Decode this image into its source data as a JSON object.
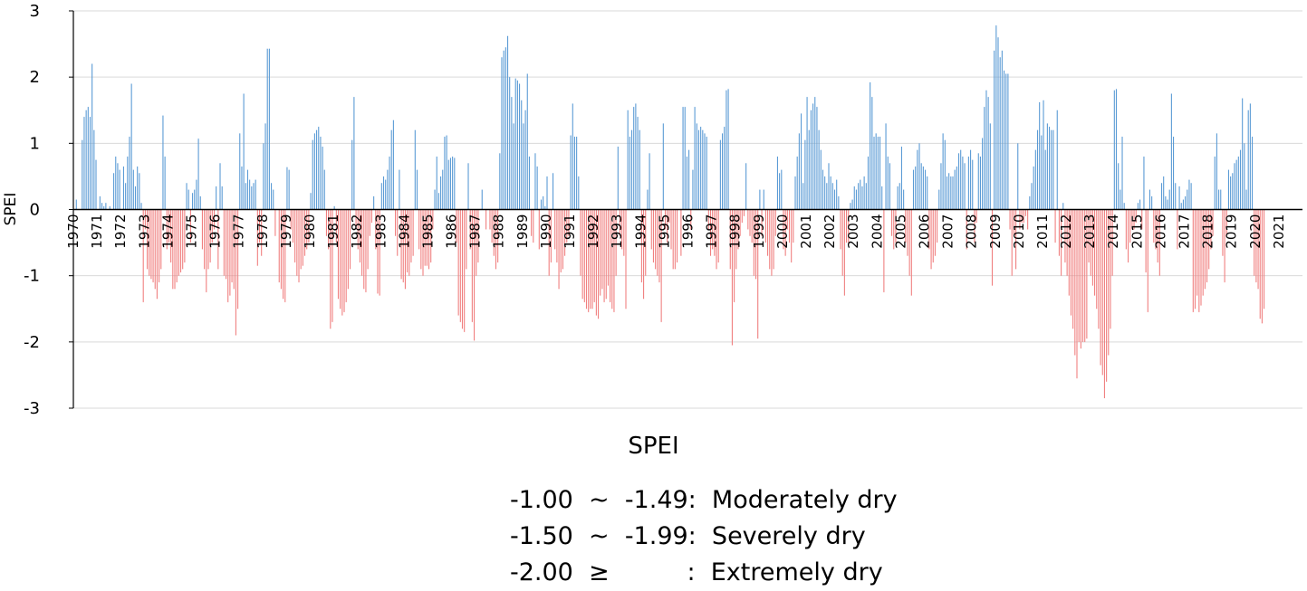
{
  "chart_data": {
    "type": "bar",
    "ylabel": "SPEI",
    "xlabel": "",
    "ylim": [
      -3,
      3
    ],
    "yticks": [
      "3",
      "2",
      "1",
      "0",
      "-1",
      "-2",
      "-3"
    ],
    "ytick_values": [
      3,
      2,
      1,
      0,
      -1,
      -2,
      -3
    ],
    "grid": "horizontal",
    "colors": {
      "positive": "#5b9bd5",
      "negative": "#f08080",
      "axis": "#000000",
      "grid": "#d9d9d9"
    },
    "year_labels": [
      "1970",
      "1971",
      "1972",
      "1973",
      "1974",
      "1975",
      "1976",
      "1977",
      "1978",
      "1979",
      "1980",
      "1981",
      "1982",
      "1983",
      "1984",
      "1985",
      "1986",
      "1987",
      "1988",
      "1989",
      "1990",
      "1991",
      "1992",
      "1993",
      "1994",
      "1995",
      "1996",
      "1997",
      "1998",
      "1999",
      "2000",
      "2001",
      "2002",
      "2003",
      "2004",
      "2005",
      "2006",
      "2007",
      "2008",
      "2009",
      "2010",
      "2011",
      "2012",
      "2013",
      "2014",
      "2015",
      "2016",
      "2017",
      "2018",
      "2019",
      "2020",
      "2021"
    ],
    "start_year": 1970,
    "series": [
      {
        "values": [
          0.0,
          0.15,
          0.0,
          0.0,
          1.05,
          1.4,
          1.5,
          1.55,
          1.4,
          2.2,
          1.2,
          0.75,
          0.0,
          0.2,
          0.1,
          0.05,
          0.1,
          0.0,
          0.05,
          0.0,
          0.55,
          0.8,
          0.7,
          0.6,
          0.0,
          0.65,
          0.4,
          0.8,
          1.1,
          1.9,
          0.6,
          0.35,
          0.65,
          0.55,
          0.1,
          -1.4,
          -0.3,
          -0.9,
          -1.0,
          -1.05,
          -1.1,
          -1.2,
          -1.35,
          -1.1,
          -0.9,
          1.42,
          0.8,
          -0.6,
          -0.5,
          -0.8,
          -1.2,
          -1.2,
          -1.1,
          -1.0,
          -0.95,
          -0.9,
          -0.8,
          0.4,
          0.3,
          -0.5,
          0.25,
          0.3,
          0.45,
          1.07,
          0.2,
          -0.6,
          -0.9,
          -1.25,
          -0.9,
          -0.8,
          -0.5,
          -0.3,
          0.35,
          -0.9,
          0.7,
          0.35,
          -1.0,
          -1.05,
          -1.4,
          -1.3,
          -1.1,
          -1.2,
          -1.9,
          -1.5,
          1.15,
          0.65,
          1.75,
          0.4,
          0.6,
          0.45,
          0.35,
          0.4,
          0.45,
          -0.85,
          -0.5,
          -0.7,
          1.0,
          1.3,
          2.43,
          2.43,
          0.4,
          0.3,
          -0.4,
          0.0,
          -1.1,
          -1.2,
          -1.35,
          -1.4,
          0.64,
          0.6,
          -0.3,
          -0.5,
          -0.8,
          -1.0,
          -1.1,
          -0.9,
          -0.85,
          -0.7,
          -0.6,
          -0.5,
          0.25,
          1.05,
          1.15,
          1.2,
          1.25,
          1.1,
          0.95,
          0.6,
          -0.4,
          -0.6,
          -1.8,
          -1.7,
          0.05,
          -0.5,
          -1.35,
          -1.5,
          -1.6,
          -1.55,
          -1.4,
          -1.2,
          -0.9,
          1.05,
          1.7,
          -0.3,
          -0.6,
          -0.8,
          -1.0,
          -1.2,
          -1.25,
          -0.9,
          -0.4,
          -0.2,
          0.2,
          -0.6,
          -1.27,
          -1.3,
          0.4,
          0.5,
          0.45,
          0.6,
          0.8,
          1.2,
          1.35,
          -0.4,
          -0.7,
          0.6,
          -1.05,
          -1.1,
          -1.2,
          -0.95,
          -1.0,
          -0.8,
          -0.7,
          1.2,
          0.6,
          -0.6,
          -0.9,
          -1.0,
          -0.85,
          -0.85,
          -0.9,
          -0.8,
          -0.3,
          0.3,
          0.8,
          0.25,
          0.5,
          0.6,
          1.1,
          1.12,
          0.75,
          0.78,
          0.8,
          0.78,
          -0.5,
          -1.6,
          -1.7,
          -1.8,
          -1.85,
          -0.9,
          0.7,
          -0.6,
          -1.7,
          -1.98,
          -1.0,
          -0.8,
          0.0,
          0.3,
          0.0,
          -0.3,
          0.0,
          -0.3,
          -0.5,
          -0.7,
          -0.9,
          -0.8,
          0.85,
          2.3,
          2.4,
          2.45,
          2.62,
          2.0,
          1.7,
          1.3,
          1.98,
          1.95,
          1.9,
          1.65,
          1.3,
          1.5,
          2.05,
          0.8,
          -0.4,
          -0.5,
          0.85,
          0.65,
          -0.6,
          0.15,
          0.2,
          0.05,
          0.5,
          -1.0,
          -0.8,
          0.55,
          -0.6,
          -0.8,
          -1.2,
          -0.95,
          -0.9,
          -0.7,
          -0.5,
          -0.4,
          1.12,
          1.6,
          1.1,
          1.1,
          0.5,
          -1.0,
          -1.35,
          -1.4,
          -1.5,
          -1.55,
          -1.5,
          -1.5,
          -1.4,
          -1.6,
          -1.65,
          -1.3,
          -1.2,
          -1.4,
          -1.35,
          -1.15,
          -1.4,
          -1.5,
          -1.55,
          -1.0,
          0.95,
          -0.4,
          -0.6,
          -0.7,
          -1.5,
          1.5,
          1.1,
          1.2,
          1.55,
          1.6,
          1.4,
          1.2,
          -1.1,
          -1.35,
          -1.0,
          0.3,
          0.85,
          -0.6,
          -0.8,
          -0.9,
          -1.0,
          -1.1,
          -1.7,
          1.3,
          -0.3,
          -0.5,
          -0.2,
          -0.6,
          -0.9,
          -0.9,
          -0.8,
          0.0,
          -0.7,
          1.55,
          1.55,
          0.8,
          0.9,
          -0.3,
          0.6,
          1.55,
          1.3,
          1.2,
          1.25,
          1.2,
          1.15,
          1.1,
          -0.3,
          -0.7,
          -0.6,
          -0.7,
          -0.9,
          -0.8,
          1.05,
          1.15,
          1.25,
          1.8,
          1.82,
          -0.9,
          -2.05,
          -1.4,
          -0.9,
          -0.6,
          -0.4,
          -0.2,
          -0.1,
          0.7,
          -0.3,
          -0.4,
          -0.5,
          -1.0,
          -1.05,
          -1.95,
          0.3,
          -0.4,
          0.3,
          -0.5,
          -0.7,
          -0.9,
          -1.0,
          -0.9,
          -0.4,
          0.8,
          0.55,
          0.6,
          -0.6,
          -0.7,
          -0.3,
          -0.5,
          -0.8,
          -0.5,
          0.5,
          0.8,
          1.15,
          1.45,
          0.4,
          1.05,
          1.7,
          1.2,
          1.5,
          1.6,
          1.7,
          1.55,
          1.2,
          0.9,
          0.6,
          0.5,
          0.4,
          0.7,
          0.5,
          0.4,
          0.3,
          0.45,
          0.2,
          -0.6,
          -1.0,
          -1.3,
          -0.5,
          -0.5,
          0.1,
          0.15,
          0.35,
          0.3,
          0.4,
          0.45,
          0.35,
          0.5,
          0.4,
          0.8,
          1.92,
          1.7,
          1.1,
          1.15,
          1.1,
          1.1,
          0.35,
          -1.25,
          1.3,
          0.8,
          0.7,
          -0.4,
          -0.6,
          -0.5,
          0.35,
          0.4,
          0.95,
          0.3,
          -0.5,
          -0.7,
          -1.0,
          -1.3,
          0.6,
          0.65,
          0.9,
          1.0,
          0.7,
          0.65,
          0.6,
          0.5,
          -0.6,
          -0.9,
          -0.8,
          -0.7,
          -0.5,
          0.3,
          0.7,
          1.15,
          1.05,
          0.5,
          0.55,
          0.5,
          0.5,
          0.6,
          0.65,
          0.85,
          0.9,
          0.8,
          0.7,
          -0.6,
          0.8,
          0.9,
          0.75,
          -0.5,
          -0.2,
          0.85,
          0.8,
          1.08,
          1.55,
          1.8,
          1.7,
          1.3,
          -1.15,
          2.4,
          2.78,
          2.6,
          2.3,
          2.4,
          2.1,
          2.05,
          2.05,
          -0.3,
          -1.0,
          -0.4,
          -0.9,
          1.0,
          -0.3,
          -0.2,
          -0.2,
          -0.1,
          -0.3,
          0.2,
          0.4,
          0.65,
          0.9,
          1.2,
          1.62,
          1.12,
          1.65,
          0.9,
          1.3,
          1.25,
          1.2,
          1.2,
          -0.5,
          1.5,
          -0.7,
          -1.0,
          0.1,
          -0.8,
          -1.0,
          -1.3,
          -1.6,
          -1.8,
          -2.2,
          -2.55,
          -2.0,
          -2.1,
          -2.0,
          -2.0,
          -1.95,
          -0.8,
          -1.0,
          -1.15,
          -1.3,
          -1.5,
          -1.8,
          -2.35,
          -2.5,
          -2.85,
          -2.6,
          -2.2,
          -1.8,
          -1.0,
          1.8,
          1.82,
          0.7,
          0.3,
          1.1,
          0.1,
          -0.6,
          -0.8,
          -0.5,
          -0.3,
          -0.3,
          -0.2,
          0.1,
          0.15,
          -0.3,
          0.8,
          -0.95,
          -1.55,
          0.3,
          0.2,
          -0.5,
          -0.6,
          -0.8,
          -1.0,
          0.4,
          0.5,
          0.2,
          0.15,
          0.3,
          1.75,
          1.1,
          0.4,
          -0.6,
          0.35,
          0.1,
          0.15,
          0.2,
          0.3,
          0.45,
          0.4,
          -1.55,
          -1.5,
          -1.3,
          -1.55,
          -1.45,
          -1.3,
          -1.2,
          -1.1,
          -0.9,
          -0.6,
          -0.4,
          0.8,
          1.15,
          0.3,
          0.3,
          -0.7,
          -1.1,
          -0.4,
          0.6,
          0.5,
          0.55,
          0.7,
          0.75,
          0.8,
          0.9,
          1.68,
          1.0,
          0.3,
          1.5,
          1.6,
          1.1,
          -1.0,
          -1.1,
          -1.2,
          -1.65,
          -1.72,
          -1.5
        ]
      }
    ]
  },
  "legend": {
    "title": "SPEI",
    "lines": [
      "-1.00  ~  -1.49:  Moderately dry",
      "-1.50  ~  -1.99:  Severely dry",
      "-2.00  ≥          :  Extremely dry"
    ]
  }
}
